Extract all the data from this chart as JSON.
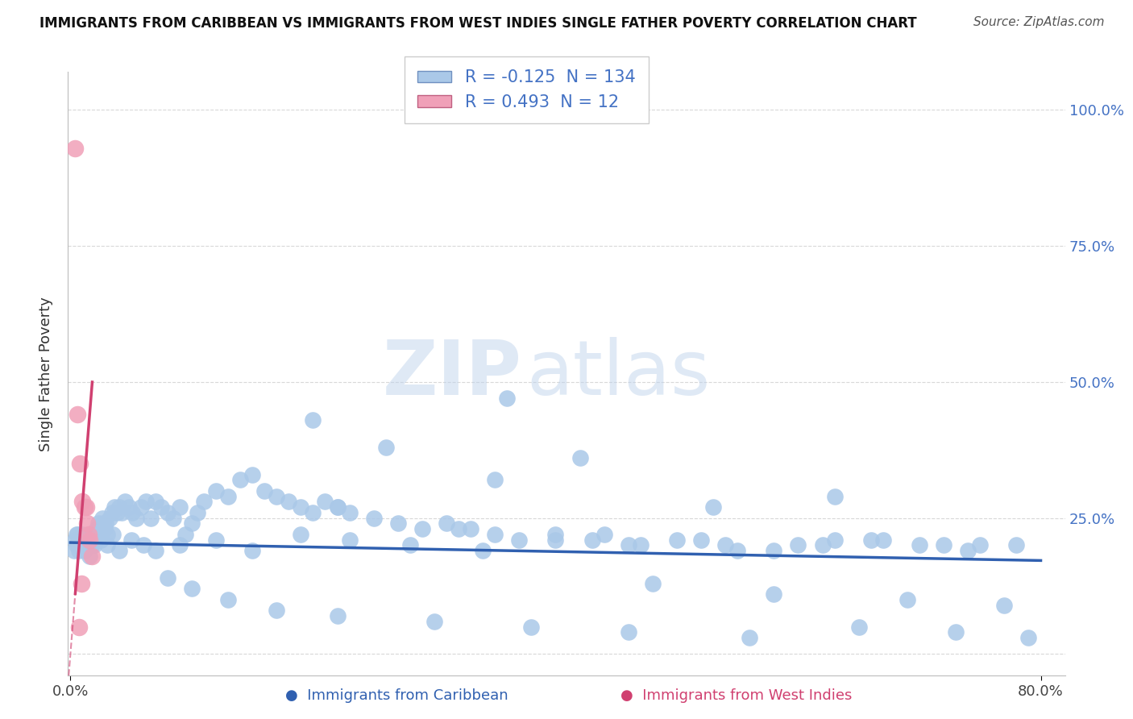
{
  "title": "IMMIGRANTS FROM CARIBBEAN VS IMMIGRANTS FROM WEST INDIES SINGLE FATHER POVERTY CORRELATION CHART",
  "source": "Source: ZipAtlas.com",
  "xlabel_blue": "Immigrants from Caribbean",
  "xlabel_pink": "Immigrants from West Indies",
  "ylabel": "Single Father Poverty",
  "xlim_min": -0.002,
  "xlim_max": 0.82,
  "ylim_min": -0.04,
  "ylim_max": 1.07,
  "xtick_positions": [
    0.0,
    0.8
  ],
  "xtick_labels": [
    "0.0%",
    "80.0%"
  ],
  "ytick_positions": [
    0.0,
    0.25,
    0.5,
    0.75,
    1.0
  ],
  "ytick_labels_right": [
    "",
    "25.0%",
    "50.0%",
    "75.0%",
    "100.0%"
  ],
  "R_blue": -0.125,
  "N_blue": 134,
  "R_pink": 0.493,
  "N_pink": 12,
  "color_blue_scatter": "#aac8e8",
  "color_pink_scatter": "#f0a0b8",
  "color_blue_line": "#3060b0",
  "color_pink_line": "#d04070",
  "color_blue_text": "#4472c4",
  "color_right_axis": "#4472c4",
  "color_grid": "#d8d8d8",
  "blue_line_y0": 0.205,
  "blue_line_y1": 0.172,
  "pink_line_x0": 0.0,
  "pink_line_y0": 0.0,
  "pink_line_x1": 0.018,
  "pink_line_y1": 0.5,
  "blue_x": [
    0.003,
    0.004,
    0.005,
    0.006,
    0.007,
    0.008,
    0.009,
    0.01,
    0.011,
    0.012,
    0.013,
    0.014,
    0.015,
    0.016,
    0.017,
    0.018,
    0.019,
    0.02,
    0.021,
    0.022,
    0.023,
    0.024,
    0.025,
    0.026,
    0.027,
    0.028,
    0.029,
    0.03,
    0.032,
    0.034,
    0.036,
    0.038,
    0.04,
    0.042,
    0.045,
    0.048,
    0.051,
    0.054,
    0.058,
    0.062,
    0.066,
    0.07,
    0.075,
    0.08,
    0.085,
    0.09,
    0.095,
    0.1,
    0.105,
    0.11,
    0.12,
    0.13,
    0.14,
    0.15,
    0.16,
    0.17,
    0.18,
    0.19,
    0.2,
    0.21,
    0.22,
    0.23,
    0.25,
    0.27,
    0.29,
    0.31,
    0.33,
    0.35,
    0.37,
    0.4,
    0.43,
    0.46,
    0.5,
    0.54,
    0.58,
    0.62,
    0.66,
    0.7,
    0.74,
    0.78,
    0.005,
    0.008,
    0.012,
    0.016,
    0.02,
    0.025,
    0.03,
    0.035,
    0.04,
    0.05,
    0.06,
    0.07,
    0.09,
    0.12,
    0.15,
    0.19,
    0.23,
    0.28,
    0.34,
    0.4,
    0.47,
    0.55,
    0.63,
    0.72,
    0.32,
    0.2,
    0.26,
    0.44,
    0.52,
    0.6,
    0.67,
    0.75,
    0.08,
    0.1,
    0.13,
    0.17,
    0.22,
    0.3,
    0.38,
    0.46,
    0.56,
    0.65,
    0.73,
    0.79,
    0.36,
    0.48,
    0.58,
    0.69,
    0.77,
    0.42,
    0.22,
    0.53,
    0.35,
    0.63
  ],
  "blue_y": [
    0.19,
    0.21,
    0.2,
    0.22,
    0.19,
    0.21,
    0.2,
    0.22,
    0.2,
    0.21,
    0.2,
    0.21,
    0.22,
    0.2,
    0.21,
    0.2,
    0.22,
    0.21,
    0.22,
    0.23,
    0.24,
    0.22,
    0.23,
    0.25,
    0.24,
    0.23,
    0.24,
    0.22,
    0.25,
    0.26,
    0.27,
    0.26,
    0.27,
    0.26,
    0.28,
    0.27,
    0.26,
    0.25,
    0.27,
    0.28,
    0.25,
    0.28,
    0.27,
    0.26,
    0.25,
    0.27,
    0.22,
    0.24,
    0.26,
    0.28,
    0.3,
    0.29,
    0.32,
    0.33,
    0.3,
    0.29,
    0.28,
    0.27,
    0.26,
    0.28,
    0.27,
    0.26,
    0.25,
    0.24,
    0.23,
    0.24,
    0.23,
    0.22,
    0.21,
    0.22,
    0.21,
    0.2,
    0.21,
    0.2,
    0.19,
    0.2,
    0.21,
    0.2,
    0.19,
    0.2,
    0.22,
    0.2,
    0.19,
    0.18,
    0.2,
    0.21,
    0.2,
    0.22,
    0.19,
    0.21,
    0.2,
    0.19,
    0.2,
    0.21,
    0.19,
    0.22,
    0.21,
    0.2,
    0.19,
    0.21,
    0.2,
    0.19,
    0.21,
    0.2,
    0.23,
    0.43,
    0.38,
    0.22,
    0.21,
    0.2,
    0.21,
    0.2,
    0.14,
    0.12,
    0.1,
    0.08,
    0.07,
    0.06,
    0.05,
    0.04,
    0.03,
    0.05,
    0.04,
    0.03,
    0.47,
    0.13,
    0.11,
    0.1,
    0.09,
    0.36,
    0.27,
    0.27,
    0.32,
    0.29
  ],
  "pink_x": [
    0.004,
    0.006,
    0.008,
    0.01,
    0.012,
    0.013,
    0.014,
    0.015,
    0.016,
    0.018,
    0.007,
    0.009
  ],
  "pink_y": [
    0.93,
    0.44,
    0.35,
    0.28,
    0.27,
    0.27,
    0.24,
    0.22,
    0.21,
    0.18,
    0.05,
    0.13
  ]
}
